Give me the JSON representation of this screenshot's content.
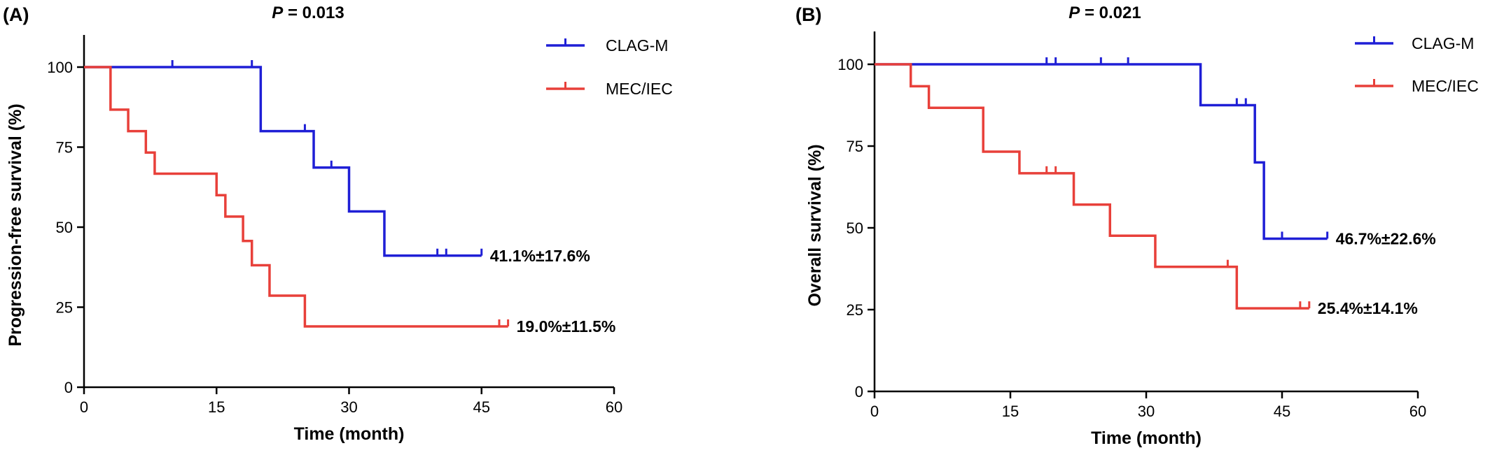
{
  "chart_data": [
    {
      "type": "line",
      "panel_label": "(A)",
      "p_label": "P",
      "p_value": " = 0.013",
      "xlabel": "Time (month)",
      "ylabel": "Progression-free survival (%)",
      "xlim": [
        0,
        60
      ],
      "ylim": [
        0,
        110
      ],
      "x_ticks": [
        "0",
        "15",
        "30",
        "45",
        "60"
      ],
      "y_ticks": [
        "0",
        "25",
        "50",
        "75",
        "100"
      ],
      "grid": false,
      "legend_position": "top-right",
      "series": [
        {
          "name": "CLAG-M",
          "color": "#1f1fd6",
          "steps": [
            [
              0,
              100
            ],
            [
              20,
              80
            ],
            [
              26,
              68.6
            ],
            [
              30,
              54.9
            ],
            [
              34,
              41.1
            ],
            [
              45,
              41.1
            ]
          ],
          "censors": [
            [
              10,
              100
            ],
            [
              19,
              100
            ],
            [
              25,
              80
            ],
            [
              28,
              68.6
            ],
            [
              40,
              41.1
            ],
            [
              41,
              41.1
            ],
            [
              45,
              41.1
            ]
          ],
          "annotation": "41.1%±17.6%"
        },
        {
          "name": "MEC/IEC",
          "color": "#e8403a",
          "steps": [
            [
              0,
              100
            ],
            [
              3,
              86.7
            ],
            [
              5,
              80
            ],
            [
              7,
              73.3
            ],
            [
              8,
              66.7
            ],
            [
              15,
              60
            ],
            [
              16,
              53.3
            ],
            [
              18,
              45.7
            ],
            [
              19,
              38.1
            ],
            [
              21,
              28.6
            ],
            [
              25,
              19
            ],
            [
              48,
              19
            ]
          ],
          "censors": [
            [
              47,
              19
            ],
            [
              48,
              19
            ]
          ],
          "annotation": "19.0%±11.5%"
        }
      ]
    },
    {
      "type": "line",
      "panel_label": "(B)",
      "p_label": "P",
      "p_value": " = 0.021",
      "xlabel": "Time (month)",
      "ylabel": "Overall survival (%)",
      "xlim": [
        0,
        60
      ],
      "ylim": [
        0,
        110
      ],
      "x_ticks": [
        "0",
        "15",
        "30",
        "45",
        "60"
      ],
      "y_ticks": [
        "0",
        "25",
        "50",
        "75",
        "100"
      ],
      "grid": false,
      "legend_position": "top-right",
      "series": [
        {
          "name": "CLAG-M",
          "color": "#1f1fd6",
          "steps": [
            [
              0,
              100
            ],
            [
              36,
              87.5
            ],
            [
              42,
              70
            ],
            [
              43,
              46.7
            ],
            [
              50,
              46.7
            ]
          ],
          "censors": [
            [
              19,
              100
            ],
            [
              20,
              100
            ],
            [
              25,
              100
            ],
            [
              28,
              100
            ],
            [
              40,
              87.5
            ],
            [
              41,
              87.5
            ],
            [
              45,
              46.7
            ],
            [
              50,
              46.7
            ]
          ],
          "annotation": "46.7%±22.6%"
        },
        {
          "name": "MEC/IEC",
          "color": "#e8403a",
          "steps": [
            [
              0,
              100
            ],
            [
              4,
              93.3
            ],
            [
              6,
              86.7
            ],
            [
              12,
              73.3
            ],
            [
              16,
              66.7
            ],
            [
              22,
              57.1
            ],
            [
              26,
              47.6
            ],
            [
              31,
              38.1
            ],
            [
              40,
              25.4
            ],
            [
              48,
              25.4
            ]
          ],
          "censors": [
            [
              19,
              66.7
            ],
            [
              20,
              66.7
            ],
            [
              39,
              38.1
            ],
            [
              47,
              25.4
            ],
            [
              48,
              25.4
            ]
          ],
          "annotation": "25.4%±14.1%"
        }
      ]
    }
  ]
}
